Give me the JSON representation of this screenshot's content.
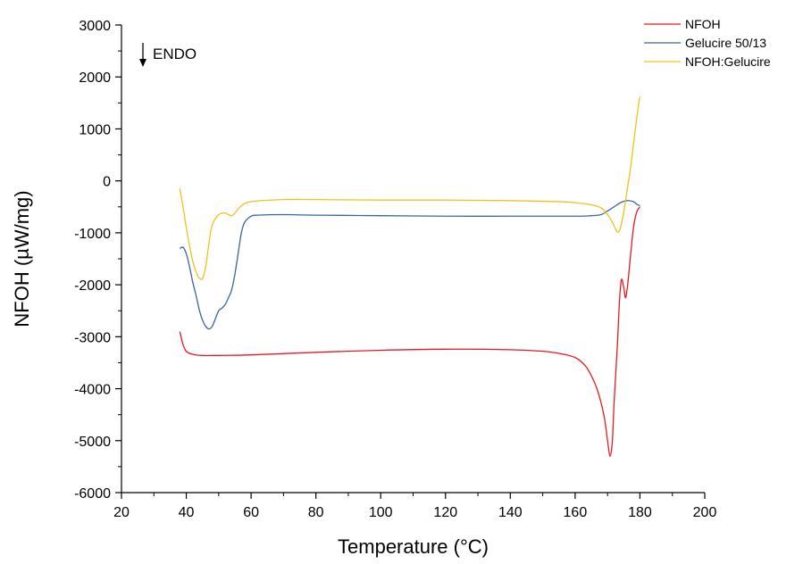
{
  "chart_data": {
    "type": "line",
    "title": "",
    "xlabel": "Temperature (°C)",
    "ylabel": "NFOH (µW/mg)",
    "xlim": [
      20,
      200
    ],
    "ylim": [
      -6000,
      3000
    ],
    "xticks": [
      20,
      40,
      60,
      80,
      100,
      120,
      140,
      160,
      180,
      200
    ],
    "yticks": [
      -6000,
      -5000,
      -4000,
      -3000,
      -2000,
      -1000,
      0,
      1000,
      2000,
      3000
    ],
    "grid": false,
    "legend_position": "top-right",
    "annotation": "ENDO",
    "series": [
      {
        "name": "NFOH",
        "color": "#e8191e",
        "points": [
          [
            38,
            -2900
          ],
          [
            39,
            -3150
          ],
          [
            40,
            -3280
          ],
          [
            42,
            -3340
          ],
          [
            45,
            -3360
          ],
          [
            50,
            -3360
          ],
          [
            60,
            -3350
          ],
          [
            80,
            -3300
          ],
          [
            100,
            -3260
          ],
          [
            120,
            -3240
          ],
          [
            140,
            -3250
          ],
          [
            150,
            -3280
          ],
          [
            155,
            -3320
          ],
          [
            160,
            -3400
          ],
          [
            163,
            -3550
          ],
          [
            165,
            -3750
          ],
          [
            167,
            -4050
          ],
          [
            169,
            -4550
          ],
          [
            170,
            -5000
          ],
          [
            170.8,
            -5300
          ],
          [
            171.5,
            -5000
          ],
          [
            172,
            -4300
          ],
          [
            173,
            -3200
          ],
          [
            173.7,
            -2300
          ],
          [
            174.3,
            -1900
          ],
          [
            175,
            -2050
          ],
          [
            175.6,
            -2250
          ],
          [
            176.3,
            -1950
          ],
          [
            177,
            -1500
          ],
          [
            178,
            -900
          ],
          [
            179,
            -600
          ],
          [
            180,
            -500
          ]
        ]
      },
      {
        "name": "Gelucire 50/13",
        "color": "#3a64a8",
        "points": [
          [
            38,
            -1300
          ],
          [
            39,
            -1280
          ],
          [
            40,
            -1400
          ],
          [
            41,
            -1650
          ],
          [
            42,
            -1950
          ],
          [
            43,
            -2200
          ],
          [
            44,
            -2480
          ],
          [
            45,
            -2680
          ],
          [
            46,
            -2800
          ],
          [
            47,
            -2850
          ],
          [
            48,
            -2800
          ],
          [
            49,
            -2650
          ],
          [
            50,
            -2500
          ],
          [
            51,
            -2450
          ],
          [
            52,
            -2380
          ],
          [
            53,
            -2250
          ],
          [
            54,
            -2100
          ],
          [
            55,
            -1800
          ],
          [
            56,
            -1400
          ],
          [
            57,
            -1000
          ],
          [
            58,
            -800
          ],
          [
            60,
            -680
          ],
          [
            62,
            -660
          ],
          [
            70,
            -650
          ],
          [
            80,
            -660
          ],
          [
            100,
            -670
          ],
          [
            120,
            -680
          ],
          [
            140,
            -680
          ],
          [
            160,
            -680
          ],
          [
            165,
            -670
          ],
          [
            168,
            -650
          ],
          [
            170,
            -580
          ],
          [
            172,
            -500
          ],
          [
            174,
            -420
          ],
          [
            176,
            -380
          ],
          [
            178,
            -400
          ],
          [
            179,
            -450
          ],
          [
            180,
            -480
          ]
        ]
      },
      {
        "name": "NFOH:Gelucire",
        "color": "#f2c01d",
        "points": [
          [
            38,
            -150
          ],
          [
            39,
            -500
          ],
          [
            40,
            -900
          ],
          [
            41,
            -1250
          ],
          [
            42,
            -1550
          ],
          [
            43,
            -1750
          ],
          [
            44,
            -1870
          ],
          [
            45,
            -1880
          ],
          [
            46,
            -1650
          ],
          [
            47,
            -1200
          ],
          [
            48,
            -850
          ],
          [
            50,
            -650
          ],
          [
            52,
            -620
          ],
          [
            53,
            -650
          ],
          [
            54,
            -670
          ],
          [
            55,
            -620
          ],
          [
            57,
            -480
          ],
          [
            60,
            -400
          ],
          [
            70,
            -360
          ],
          [
            80,
            -360
          ],
          [
            100,
            -370
          ],
          [
            120,
            -370
          ],
          [
            140,
            -380
          ],
          [
            155,
            -400
          ],
          [
            160,
            -420
          ],
          [
            165,
            -460
          ],
          [
            168,
            -520
          ],
          [
            170,
            -650
          ],
          [
            171.5,
            -800
          ],
          [
            172.5,
            -930
          ],
          [
            173.2,
            -990
          ],
          [
            174,
            -900
          ],
          [
            175,
            -600
          ],
          [
            176,
            -200
          ],
          [
            177,
            200
          ],
          [
            178,
            700
          ],
          [
            179,
            1200
          ],
          [
            179.7,
            1520
          ],
          [
            180,
            1620
          ]
        ]
      }
    ]
  }
}
